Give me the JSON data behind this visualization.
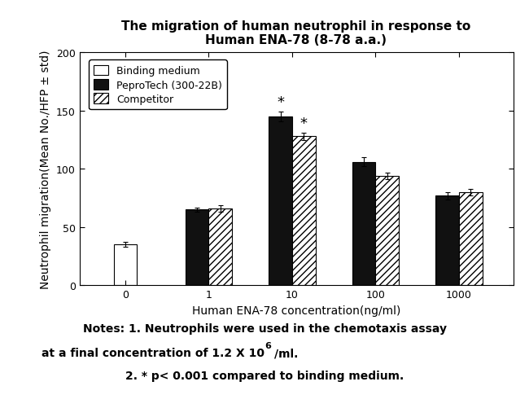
{
  "title_line1": "The migration of human neutrophil in response to",
  "title_line2": "Human ENA-78 (8-78 a.a.)",
  "xlabel": "Human ENA-78 concentration(ng/ml)",
  "ylabel": "Neutrophil migration(Mean No./HFP ± std)",
  "ylim": [
    0,
    200
  ],
  "yticks": [
    0,
    50,
    100,
    150,
    200
  ],
  "x_tick_labels": [
    "0",
    "1",
    "10",
    "100",
    "1000"
  ],
  "binding_medium_val": 35,
  "binding_medium_err": 2,
  "peprotech_vals": [
    65,
    145,
    106,
    77
  ],
  "peprotech_errs": [
    2,
    4,
    4,
    3
  ],
  "competitor_vals": [
    66,
    128,
    94,
    80
  ],
  "competitor_errs": [
    3,
    3,
    3,
    3
  ],
  "bar_width": 0.28,
  "legend_labels": [
    "Binding medium",
    "PeproTech (300-22B)",
    "Competitor"
  ],
  "note_line1": "Notes: 1. Neutrophils were used in the chemotaxis assay",
  "note_line2_pre": "at a final concentration of 1.2 X 10",
  "note_superscript": "6",
  "note_line2_post": "/ml.",
  "note_line3": "2. * p< 0.001 compared to binding medium.",
  "bg_color": "#ffffff",
  "bar_color_binding": "#ffffff",
  "bar_color_peprotech": "#111111",
  "bar_color_competitor": "#ffffff",
  "bar_edgecolor": "#000000",
  "hatch_competitor": "////",
  "title_fontsize": 11,
  "label_fontsize": 10,
  "tick_fontsize": 9,
  "legend_fontsize": 9,
  "note_fontsize": 10
}
